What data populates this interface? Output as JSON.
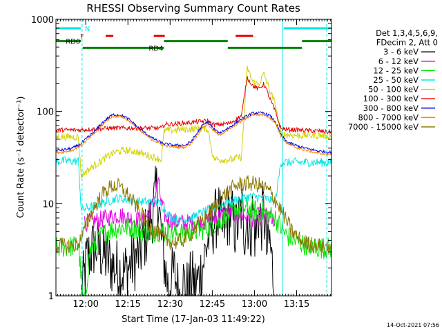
{
  "chart_data": {
    "type": "line",
    "title": "RHESSI Observing Summary Count Rates",
    "xlabel": "Start Time (17-Jan-03 11:49:22)",
    "ylabel": "Count Rate (s⁻¹ detector⁻¹)",
    "y_scale": "log",
    "ylim": [
      1,
      1000
    ],
    "xlim_minutes_after_start": [
      0,
      98
    ],
    "x_tick_labels": [
      "12:00",
      "12:15",
      "12:30",
      "12:45",
      "13:00",
      "13:15"
    ],
    "x_tick_minutes": [
      10.6,
      25.6,
      40.6,
      55.6,
      70.6,
      85.6
    ],
    "y_tick_labels": [
      "1",
      "10",
      "100",
      "1000"
    ],
    "y_tick_values": [
      1,
      10,
      100,
      1000
    ],
    "grid": false,
    "legend_position": "right",
    "legend_header": [
      "Det 1,3,4,5,6,9,",
      "FDecim 2, Att 0"
    ],
    "series": [
      {
        "name": "3 - 6 keV",
        "color": "#000000",
        "x": [
          0,
          8,
          9,
          11,
          14,
          16,
          18,
          21,
          24,
          27,
          30,
          33,
          35.5,
          36,
          36.8,
          37.6,
          38.4,
          40,
          42,
          44,
          45,
          47,
          48,
          50,
          52,
          54,
          56,
          58,
          59,
          62,
          64,
          66,
          67,
          68,
          69,
          70,
          71,
          72,
          73,
          74,
          75,
          76,
          77,
          78,
          79,
          80,
          98
        ],
        "y": [
          null,
          null,
          1,
          2.5,
          3.5,
          3,
          2.5,
          2,
          1.8,
          2.2,
          3,
          5.5,
          12,
          15,
          8,
          4,
          2.5,
          1.2,
          1.8,
          1,
          1.5,
          1.1,
          1.5,
          1.3,
          2,
          4,
          6,
          8,
          5,
          8,
          5,
          9,
          5,
          8,
          4,
          9,
          4,
          8,
          6,
          9,
          3,
          4,
          2,
          1,
          null,
          null,
          null
        ]
      },
      {
        "name": "6 - 12 keV",
        "color": "#e600e6",
        "x": [
          0,
          8,
          10,
          14,
          18,
          22,
          26,
          30,
          33,
          35,
          36.3,
          37.5,
          39,
          42,
          46,
          50,
          54,
          58,
          62,
          66,
          70,
          74,
          76,
          78,
          80,
          98
        ],
        "y": [
          null,
          null,
          6.2,
          6.5,
          7,
          7.6,
          7,
          6.5,
          7.5,
          11,
          18,
          10,
          7,
          6.4,
          6.2,
          6.3,
          6.5,
          7.5,
          8,
          7.5,
          7,
          7.5,
          7,
          5.5,
          null,
          null
        ]
      },
      {
        "name": "12 - 25 keV",
        "color": "#00e600",
        "x": [
          0,
          8,
          10,
          12,
          16,
          20,
          24,
          28,
          32,
          34,
          36,
          38,
          41,
          44,
          48,
          52,
          56,
          60,
          64,
          68,
          72,
          76,
          78,
          80,
          82,
          86,
          90,
          94,
          98
        ],
        "y": [
          3.3,
          3.5,
          0.7,
          3,
          4.5,
          5.3,
          5.6,
          5.4,
          5,
          4.8,
          5.2,
          5,
          4.7,
          4.8,
          5,
          5.2,
          5.8,
          7,
          8.5,
          9,
          8.3,
          7.5,
          7,
          5.5,
          4.5,
          3.8,
          3.5,
          3.3,
          3.3
        ]
      },
      {
        "name": "25 - 50 keV",
        "color": "#00e6e6",
        "x": [
          0,
          8,
          9,
          11,
          14,
          18,
          22,
          26,
          30,
          34,
          37,
          38.5,
          40,
          44,
          48,
          52,
          56,
          58,
          62,
          66,
          70,
          74,
          78,
          80,
          82,
          86,
          90,
          94,
          98
        ],
        "y": [
          29,
          29,
          8.5,
          9,
          9.5,
          10.5,
          11.5,
          11,
          10.5,
          10.5,
          10,
          9,
          7.5,
          6.5,
          7,
          8,
          9,
          9.5,
          10.5,
          11.5,
          12,
          11.5,
          10.5,
          28,
          28,
          28,
          28,
          28,
          28
        ]
      },
      {
        "name": "50 - 100 keV",
        "color": "#d2d200",
        "x": [
          0,
          8,
          9,
          12,
          16,
          20,
          24,
          28,
          32,
          36,
          37.5,
          38.5,
          42,
          46,
          50,
          54,
          56,
          58,
          62,
          66,
          68,
          70,
          72,
          74,
          76,
          78,
          80,
          82,
          86,
          90,
          94,
          98
        ],
        "y": [
          53,
          53,
          20,
          24,
          29,
          35,
          38,
          37,
          34,
          31,
          30,
          62,
          63,
          64,
          65,
          65,
          31,
          30,
          30,
          32,
          300,
          210,
          195,
          255,
          170,
          120,
          57,
          56,
          55,
          55,
          55,
          54
        ]
      },
      {
        "name": "100 - 300 keV",
        "color": "#e60000",
        "x": [
          0,
          8,
          9,
          12,
          16,
          20,
          24,
          28,
          32,
          35,
          37.5,
          38.5,
          42,
          46,
          50,
          54,
          56,
          58,
          62,
          66,
          68,
          70,
          72,
          74,
          76,
          78,
          80,
          82,
          86,
          90,
          94,
          98
        ],
        "y": [
          63,
          63,
          63,
          64,
          65,
          66,
          66,
          66,
          66,
          66,
          66,
          72,
          73,
          75,
          77,
          79,
          72,
          72,
          75,
          90,
          235,
          190,
          175,
          200,
          140,
          100,
          65,
          64,
          63,
          62,
          61,
          60
        ]
      },
      {
        "name": "300 - 800 keV",
        "color": "#0000e6",
        "x": [
          0,
          2,
          6,
          9,
          13,
          17,
          20,
          23,
          26,
          30,
          34,
          38,
          42,
          46,
          48,
          50,
          52,
          54,
          56,
          58,
          62,
          66,
          70,
          74,
          76,
          78,
          80,
          82,
          86,
          90,
          94,
          98
        ],
        "y": [
          38,
          38,
          40,
          45,
          58,
          78,
          92,
          92,
          82,
          64,
          52,
          45,
          43,
          43,
          47,
          57,
          70,
          77,
          65,
          58,
          68,
          83,
          96,
          96,
          90,
          78,
          56,
          47,
          42,
          39,
          37,
          36
        ]
      },
      {
        "name": "800 - 7000 keV",
        "color": "#ff8000",
        "x": [
          0,
          2,
          6,
          9,
          13,
          17,
          20,
          23,
          26,
          30,
          34,
          38,
          42,
          46,
          48,
          50,
          52,
          54,
          56,
          58,
          62,
          66,
          70,
          74,
          76,
          78,
          80,
          82,
          86,
          90,
          94,
          98
        ],
        "y": [
          36,
          36,
          38,
          43,
          55,
          74,
          88,
          89,
          79,
          61,
          50,
          43,
          41,
          41,
          45,
          54,
          66,
          73,
          62,
          55,
          65,
          79,
          92,
          92,
          86,
          75,
          54,
          45,
          40,
          37,
          35,
          34
        ]
      },
      {
        "name": "7000 - 15000 keV",
        "color": "#8c7800",
        "x": [
          0,
          6,
          8,
          10,
          12,
          14,
          16,
          18,
          20,
          22,
          24,
          26,
          28,
          30,
          32,
          34,
          36,
          38,
          40,
          42,
          44,
          46,
          48,
          50,
          52,
          54,
          56,
          58,
          60,
          62,
          64,
          66,
          68,
          70,
          72,
          74,
          76,
          78,
          80,
          82,
          84,
          86,
          88,
          90,
          92,
          94,
          96,
          98
        ],
        "y": [
          3.5,
          3.5,
          3.7,
          5,
          7.2,
          9.5,
          12,
          14,
          15.5,
          15.5,
          14,
          12,
          9.8,
          8,
          6.5,
          5.5,
          4.8,
          4.2,
          3.9,
          3.8,
          3.9,
          4.2,
          4.8,
          5.5,
          6.5,
          7.5,
          8.8,
          10.5,
          12.5,
          14,
          15.5,
          16.5,
          16.5,
          16.5,
          16,
          15,
          13.5,
          11,
          8.5,
          6.5,
          5,
          4.3,
          3.8,
          3.6,
          3.5,
          3.5,
          3.4,
          3.3
        ]
      }
    ],
    "attenuator_flag_segments": [
      {
        "label": "",
        "color": "#00e6e6",
        "x": [
          0,
          8.9
        ],
        "y": 800
      },
      {
        "label": "",
        "color": "#00e6e6",
        "x": [
          81,
          98
        ],
        "y": 800
      },
      {
        "label": "",
        "color": "#e60000",
        "x": [
          17.7,
          20.4
        ],
        "y": 660
      },
      {
        "label": "",
        "color": "#e60000",
        "x": [
          34.8,
          38.7
        ],
        "y": 660
      },
      {
        "label": "",
        "color": "#e60000",
        "x": [
          63.9,
          70.1
        ],
        "y": 660
      }
    ],
    "flag_segments": [
      {
        "label": "",
        "color": "#00e6e6",
        "x": [
          0,
          8.9
        ],
        "y": 800
      },
      {
        "label": "",
        "color": "#00e6e6",
        "x": [
          81,
          98
        ],
        "y": 800
      },
      {
        "label": "",
        "color": "#e60000",
        "x": [
          17.7,
          20.4
        ],
        "y": 660
      },
      {
        "label": "",
        "color": "#e60000",
        "x": [
          34.8,
          38.7
        ],
        "y": 660
      },
      {
        "label": "",
        "color": "#e60000",
        "x": [
          63.9,
          70.1
        ],
        "y": 660
      },
      {
        "label": "RD0",
        "color": "#008000",
        "x": [
          0,
          8.9
        ],
        "y": 580
      },
      {
        "label": "",
        "color": "#008000",
        "x": [
          38.4,
          61.1
        ],
        "y": 580
      },
      {
        "label": "",
        "color": "#008000",
        "x": [
          87.5,
          98
        ],
        "y": 580
      },
      {
        "label": "RD4",
        "color": "#008000",
        "x": [
          9.5,
          38.4
        ],
        "y": 490
      },
      {
        "label": "",
        "color": "#008000",
        "x": [
          61.1,
          87.5
        ],
        "y": 490
      }
    ],
    "flag_letters": [
      {
        "text": "N",
        "color": "#00e6e6",
        "x": 11.2,
        "y": 800
      },
      {
        "text": "F",
        "color": "#e60000",
        "x": 9.3,
        "y": 660
      }
    ],
    "vertical_markers": [
      {
        "color": "#00e6e6",
        "style": "dashed",
        "x": 9.3
      },
      {
        "color": "#00e6e6",
        "style": "solid",
        "x": 80.5
      },
      {
        "color": "#00e6e6",
        "style": "dashed",
        "x": 96.3
      }
    ]
  },
  "footer": {
    "timestamp": "14-Oct-2021 07:56"
  }
}
